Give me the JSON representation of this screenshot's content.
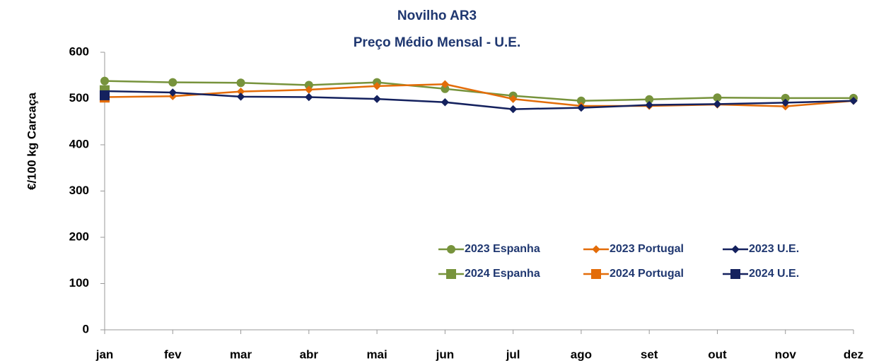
{
  "chart_data": {
    "type": "line",
    "title": "Novilho AR3",
    "subtitle": "Preço Médio Mensal - U.E.",
    "y_label": "€/100 kg  Carcaça",
    "categories": [
      "jan",
      "fev",
      "mar",
      "abr",
      "mai",
      "jun",
      "jul",
      "ago",
      "set",
      "out",
      "nov",
      "dez"
    ],
    "series": [
      {
        "name": "2023 Espanha",
        "color": "#77933c",
        "marker": "circle",
        "values": [
          538,
          535,
          534,
          529,
          535,
          521,
          506,
          495,
          498,
          502,
          501,
          501
        ]
      },
      {
        "name": "2023 Portugal",
        "color": "#e36c09",
        "marker": "diamond",
        "values": [
          503,
          505,
          515,
          519,
          527,
          531,
          499,
          484,
          484,
          487,
          483,
          495
        ]
      },
      {
        "name": "2023 U.E.",
        "color": "#14215e",
        "marker": "diamond",
        "values": [
          516,
          513,
          504,
          503,
          499,
          492,
          477,
          480,
          486,
          488,
          491,
          495
        ]
      },
      {
        "name": "2024 Espanha",
        "color": "#77933c",
        "marker": "square",
        "values": [
          518,
          null,
          null,
          null,
          null,
          null,
          null,
          null,
          null,
          null,
          null,
          null
        ]
      },
      {
        "name": "2024 Portugal",
        "color": "#e36c09",
        "marker": "square",
        "values": [
          502,
          null,
          null,
          null,
          null,
          null,
          null,
          null,
          null,
          null,
          null,
          null
        ]
      },
      {
        "name": "2024 U.E.",
        "color": "#14215e",
        "marker": "square",
        "values": [
          507,
          null,
          null,
          null,
          null,
          null,
          null,
          null,
          null,
          null,
          null,
          null
        ]
      }
    ],
    "ylim": [
      0,
      600
    ],
    "yticks": [
      0,
      100,
      200,
      300,
      400,
      500,
      600
    ],
    "grid": false
  }
}
